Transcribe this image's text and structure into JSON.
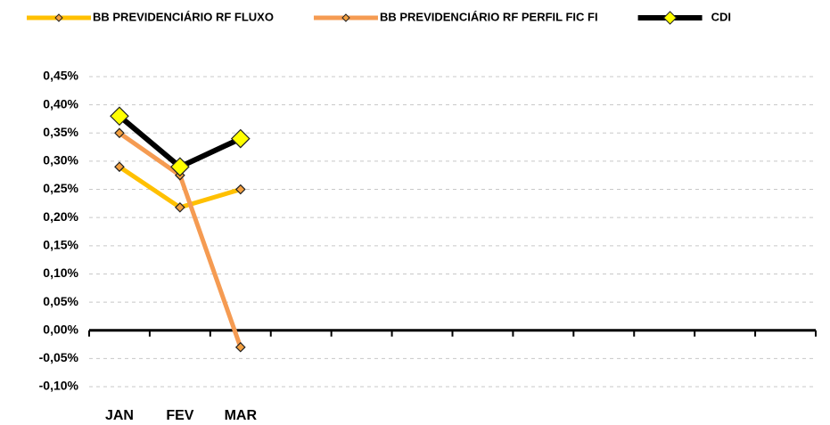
{
  "chart_data": {
    "type": "line",
    "categories": [
      "JAN",
      "FEV",
      "MAR",
      null,
      null,
      null,
      null,
      null,
      null,
      null,
      null,
      null
    ],
    "series": [
      {
        "name": "BB PREVIDENCIÁRIO RF FLUXO",
        "color": "#ffc000",
        "marker_color": "#f4a040",
        "values": [
          0.29,
          0.218,
          0.25,
          null,
          null,
          null,
          null,
          null,
          null,
          null,
          null,
          null
        ]
      },
      {
        "name": "BB PREVIDENCIÁRIO RF PERFIL FIC FI",
        "color": "#f59b52",
        "marker_color": "#f4a040",
        "values": [
          0.35,
          0.275,
          -0.03,
          null,
          null,
          null,
          null,
          null,
          null,
          null,
          null,
          null
        ]
      },
      {
        "name": "CDI",
        "color": "#000000",
        "marker_color": "#ffff00",
        "values": [
          0.38,
          0.29,
          0.34,
          null,
          null,
          null,
          null,
          null,
          null,
          null,
          null,
          null
        ]
      }
    ],
    "ylim": [
      -0.1,
      0.45
    ],
    "yticks": [
      {
        "value": -0.1,
        "label": "-0,10%"
      },
      {
        "value": -0.05,
        "label": "-0,05%"
      },
      {
        "value": 0,
        "label": "0,00%"
      },
      {
        "value": 0.05,
        "label": "0,05%"
      },
      {
        "value": 0.1,
        "label": "0,10%"
      },
      {
        "value": 0.15,
        "label": "0,15%"
      },
      {
        "value": 0.2,
        "label": "0,20%"
      },
      {
        "value": 0.25,
        "label": "0,25%"
      },
      {
        "value": 0.3,
        "label": "0,30%"
      },
      {
        "value": 0.35,
        "label": "0,35%"
      },
      {
        "value": 0.4,
        "label": "0,40%"
      },
      {
        "value": 0.45,
        "label": "0,45%"
      }
    ],
    "grid": true,
    "legend": "top"
  }
}
